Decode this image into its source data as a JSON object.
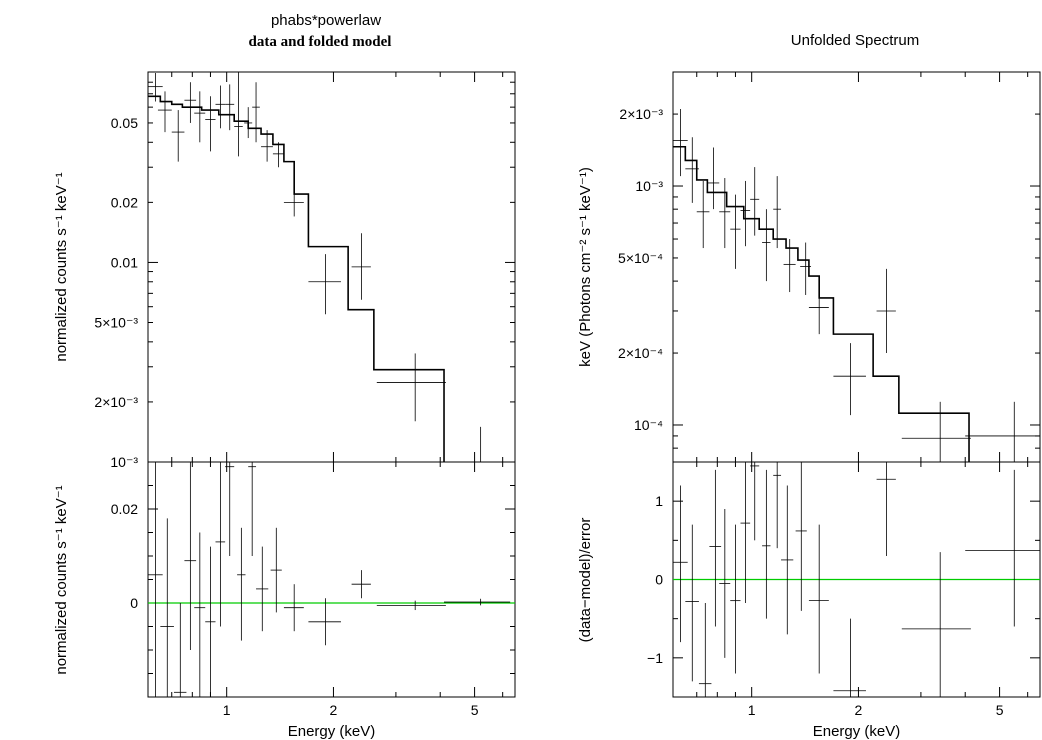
{
  "figure": {
    "left_title": "phabs*powerlaw",
    "left_subtitle": "data and folded model",
    "right_title": "Unfolded Spectrum"
  },
  "colors": {
    "axes": "#000000",
    "data": "#000000",
    "model": "#000000",
    "zero_line": "#00cc00"
  },
  "chart_data": [
    {
      "id": "folded",
      "type": "line",
      "title": "phabs*powerlaw",
      "subtitle": "data and folded model",
      "xlabel": "",
      "ylabel": "normalized counts s⁻¹ keV⁻¹",
      "xscale": "log",
      "yscale": "log",
      "xlim": [
        0.6,
        6.5
      ],
      "ylim": [
        0.001,
        0.09
      ],
      "xticks": [
        {
          "value": 1,
          "label": "1"
        },
        {
          "value": 2,
          "label": "2"
        },
        {
          "value": 5,
          "label": "5"
        }
      ],
      "yticks": [
        {
          "value": 0.05,
          "label": "0.05"
        },
        {
          "value": 0.02,
          "label": "0.02"
        },
        {
          "value": 0.01,
          "label": "0.01"
        },
        {
          "value": 0.005,
          "label": "5×10⁻³"
        },
        {
          "value": 0.002,
          "label": "2×10⁻³"
        },
        {
          "value": 0.001,
          "label": "10⁻³"
        }
      ],
      "data_points": [
        [
          0.63,
          0.076,
          0.03,
          0.064,
          0.089
        ],
        [
          0.67,
          0.058,
          0.03,
          0.045,
          0.072
        ],
        [
          0.73,
          0.045,
          0.03,
          0.032,
          0.058
        ],
        [
          0.79,
          0.065,
          0.03,
          0.05,
          0.08
        ],
        [
          0.84,
          0.056,
          0.03,
          0.04,
          0.072
        ],
        [
          0.9,
          0.052,
          0.03,
          0.036,
          0.068
        ],
        [
          0.96,
          0.062,
          0.03,
          0.047,
          0.077
        ],
        [
          1.02,
          0.062,
          0.03,
          0.046,
          0.078
        ],
        [
          1.08,
          0.048,
          0.03,
          0.034,
          0.09
        ],
        [
          1.15,
          0.05,
          0.03,
          0.042,
          0.06
        ],
        [
          1.21,
          0.06,
          0.03,
          0.04,
          0.08
        ],
        [
          1.3,
          0.038,
          0.05,
          0.032,
          0.046
        ],
        [
          1.4,
          0.035,
          0.05,
          0.03,
          0.04
        ],
        [
          1.55,
          0.02,
          0.1,
          0.017,
          0.024
        ],
        [
          1.9,
          0.008,
          0.2,
          0.0055,
          0.011
        ],
        [
          2.4,
          0.0095,
          0.15,
          0.0065,
          0.014
        ],
        [
          3.4,
          0.0025,
          0.75,
          0.0016,
          0.0035
        ]
      ],
      "model_steps": [
        [
          0.6,
          0.068
        ],
        [
          0.65,
          0.064
        ],
        [
          0.7,
          0.062
        ],
        [
          0.75,
          0.06
        ],
        [
          0.85,
          0.058
        ],
        [
          0.95,
          0.055
        ],
        [
          1.05,
          0.051
        ],
        [
          1.15,
          0.047
        ],
        [
          1.25,
          0.044
        ],
        [
          1.35,
          0.039
        ],
        [
          1.45,
          0.032
        ],
        [
          1.55,
          0.022
        ],
        [
          1.7,
          0.012
        ],
        [
          2.2,
          0.0058
        ],
        [
          2.6,
          0.0029
        ],
        [
          4.1,
          0.0009
        ]
      ],
      "upper_limit": {
        "x": 5.2,
        "y": 0.0015
      }
    },
    {
      "id": "residuals",
      "type": "scatter",
      "xlabel": "Energy (keV)",
      "ylabel": "normalized counts s⁻¹ keV⁻¹",
      "xscale": "log",
      "yscale": "linear",
      "xlim": [
        0.6,
        6.5
      ],
      "ylim": [
        -0.02,
        0.03
      ],
      "xticks": [
        {
          "value": 1,
          "label": "1"
        },
        {
          "value": 2,
          "label": "2"
        },
        {
          "value": 5,
          "label": "5"
        }
      ],
      "yticks": [
        {
          "value": 0.02,
          "label": "0.02"
        },
        {
          "value": 0,
          "label": "0"
        }
      ],
      "zero_line": true,
      "data_points": [
        [
          0.63,
          0.006,
          0.03,
          -0.03,
          0.03
        ],
        [
          0.68,
          -0.005,
          0.03,
          -0.03,
          0.018
        ],
        [
          0.74,
          -0.019,
          0.03,
          -0.03,
          0.0
        ],
        [
          0.79,
          0.009,
          0.03,
          -0.01,
          0.03
        ],
        [
          0.84,
          -0.001,
          0.03,
          -0.02,
          0.015
        ],
        [
          0.9,
          -0.004,
          0.03,
          -0.02,
          0.012
        ],
        [
          0.96,
          0.013,
          0.03,
          -0.005,
          0.03
        ],
        [
          1.02,
          0.029,
          0.03,
          0.01,
          0.03
        ],
        [
          1.1,
          0.006,
          0.03,
          -0.008,
          0.016
        ],
        [
          1.18,
          0.029,
          0.03,
          0.01,
          0.03
        ],
        [
          1.26,
          0.003,
          0.05,
          -0.006,
          0.012
        ],
        [
          1.38,
          0.007,
          0.05,
          -0.002,
          0.016
        ],
        [
          1.55,
          -0.001,
          0.1,
          -0.006,
          0.004
        ],
        [
          1.9,
          -0.004,
          0.2,
          -0.009,
          0.001
        ],
        [
          2.4,
          0.004,
          0.15,
          0.001,
          0.007
        ],
        [
          3.4,
          -0.0005,
          0.75,
          -0.0015,
          0.0005
        ],
        [
          5.2,
          0.0002,
          1.1,
          -0.0005,
          0.0009
        ]
      ]
    },
    {
      "id": "unfolded",
      "type": "line",
      "title": "Unfolded Spectrum",
      "xlabel": "",
      "ylabel": "keV (Photons cm⁻² s⁻¹ keV⁻¹)",
      "xscale": "log",
      "yscale": "log",
      "xlim": [
        0.6,
        6.5
      ],
      "ylim": [
        7e-05,
        0.003
      ],
      "xticks": [
        {
          "value": 1,
          "label": "1"
        },
        {
          "value": 2,
          "label": "2"
        },
        {
          "value": 5,
          "label": "5"
        }
      ],
      "yticks": [
        {
          "value": 0.002,
          "label": "2×10⁻³"
        },
        {
          "value": 0.001,
          "label": "10⁻³"
        },
        {
          "value": 0.0005,
          "label": "5×10⁻⁴"
        },
        {
          "value": 0.0002,
          "label": "2×10⁻⁴"
        },
        {
          "value": 0.0001,
          "label": "10⁻⁴"
        }
      ],
      "data_points": [
        [
          0.63,
          0.00155,
          0.03,
          0.0011,
          0.0021
        ],
        [
          0.68,
          0.00118,
          0.03,
          0.00085,
          0.0016
        ],
        [
          0.73,
          0.00078,
          0.03,
          0.00055,
          0.00105
        ],
        [
          0.78,
          0.00103,
          0.03,
          0.0008,
          0.00145
        ],
        [
          0.84,
          0.00078,
          0.03,
          0.00055,
          0.00108
        ],
        [
          0.9,
          0.00066,
          0.03,
          0.00045,
          0.00092
        ],
        [
          0.96,
          0.00079,
          0.03,
          0.00056,
          0.00105
        ],
        [
          1.02,
          0.00088,
          0.03,
          0.00062,
          0.0012
        ],
        [
          1.1,
          0.00058,
          0.03,
          0.0004,
          0.0008
        ],
        [
          1.18,
          0.0008,
          0.03,
          0.00055,
          0.0011
        ],
        [
          1.28,
          0.00047,
          0.05,
          0.00036,
          0.0006
        ],
        [
          1.42,
          0.00046,
          0.05,
          0.00035,
          0.00058
        ],
        [
          1.55,
          0.00031,
          0.1,
          0.00024,
          0.00039
        ],
        [
          1.9,
          0.00016,
          0.2,
          0.00011,
          0.00022
        ],
        [
          2.4,
          0.0003,
          0.15,
          0.0002,
          0.00045
        ],
        [
          3.4,
          8.8e-05,
          0.75,
          6.2e-05,
          0.000125
        ],
        [
          5.5,
          9e-05,
          1.5,
          6e-05,
          0.000125
        ]
      ],
      "model_steps": [
        [
          0.6,
          0.00146
        ],
        [
          0.65,
          0.00128
        ],
        [
          0.7,
          0.00106
        ],
        [
          0.75,
          0.00094
        ],
        [
          0.85,
          0.00082
        ],
        [
          0.95,
          0.00073
        ],
        [
          1.05,
          0.00066
        ],
        [
          1.15,
          0.0006
        ],
        [
          1.25,
          0.00055
        ],
        [
          1.35,
          0.00049
        ],
        [
          1.45,
          0.00042
        ],
        [
          1.55,
          0.00034
        ],
        [
          1.7,
          0.00024
        ],
        [
          2.2,
          0.00016
        ],
        [
          2.6,
          0.000112
        ],
        [
          4.1,
          6e-05
        ]
      ]
    },
    {
      "id": "ratio",
      "type": "scatter",
      "xlabel": "Energy (keV)",
      "ylabel": "(data−model)/error",
      "xscale": "log",
      "yscale": "linear",
      "xlim": [
        0.6,
        6.5
      ],
      "ylim": [
        -1.5,
        1.5
      ],
      "xticks": [
        {
          "value": 1,
          "label": "1"
        },
        {
          "value": 2,
          "label": "2"
        },
        {
          "value": 5,
          "label": "5"
        }
      ],
      "yticks": [
        {
          "value": 1,
          "label": "1"
        },
        {
          "value": 0,
          "label": "0"
        },
        {
          "value": -1,
          "label": "−1"
        }
      ],
      "zero_line": true,
      "data_points": [
        [
          0.63,
          0.22,
          0.03,
          -0.8,
          1.2
        ],
        [
          0.68,
          -0.28,
          0.03,
          -1.3,
          0.7
        ],
        [
          0.74,
          -1.33,
          0.03,
          -1.5,
          -0.3
        ],
        [
          0.79,
          0.42,
          0.03,
          -0.6,
          1.4
        ],
        [
          0.84,
          -0.05,
          0.03,
          -1.0,
          0.9
        ],
        [
          0.9,
          -0.27,
          0.03,
          -1.2,
          0.7
        ],
        [
          0.96,
          0.72,
          0.03,
          -0.3,
          1.5
        ],
        [
          1.02,
          1.45,
          0.03,
          0.5,
          1.5
        ],
        [
          1.1,
          0.43,
          0.03,
          -0.5,
          1.4
        ],
        [
          1.18,
          1.33,
          0.03,
          0.4,
          1.5
        ],
        [
          1.26,
          0.25,
          0.05,
          -0.7,
          1.2
        ],
        [
          1.38,
          0.62,
          0.05,
          -0.4,
          1.5
        ],
        [
          1.55,
          -0.27,
          0.1,
          -1.2,
          0.7
        ],
        [
          1.9,
          -1.42,
          0.2,
          -1.5,
          -0.5
        ],
        [
          2.4,
          1.28,
          0.15,
          0.3,
          1.5
        ],
        [
          3.4,
          -0.63,
          0.75,
          -1.5,
          0.35
        ],
        [
          5.5,
          0.37,
          1.5,
          -0.6,
          1.4
        ]
      ]
    }
  ]
}
